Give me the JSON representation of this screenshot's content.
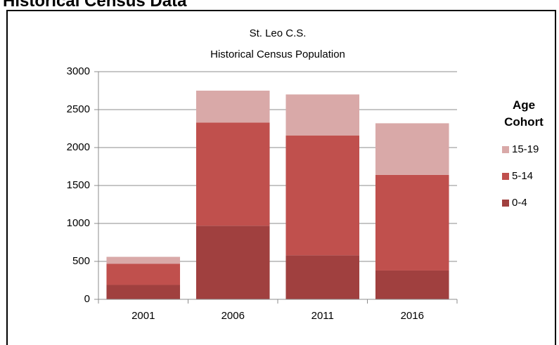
{
  "header": {
    "title": "Historical Census Data"
  },
  "chart_data": {
    "type": "stacked_bar",
    "title": "St. Leo C.S.",
    "subtitle": "Historical Census Population",
    "categories": [
      "2001",
      "2006",
      "2011",
      "2016"
    ],
    "series": [
      {
        "name": "0-4",
        "color": "#a0403f",
        "values": [
          190,
          970,
          580,
          380
        ]
      },
      {
        "name": "5-14",
        "color": "#c0504d",
        "values": [
          280,
          1360,
          1580,
          1260
        ]
      },
      {
        "name": "15-19",
        "color": "#d9a9a8",
        "values": [
          90,
          420,
          540,
          680
        ]
      }
    ],
    "ylim": [
      0,
      3000
    ],
    "yticks": [
      0,
      500,
      1000,
      1500,
      2000,
      2500,
      3000
    ],
    "grid": true,
    "legend_title": "Age Cohort",
    "legend": "right"
  }
}
